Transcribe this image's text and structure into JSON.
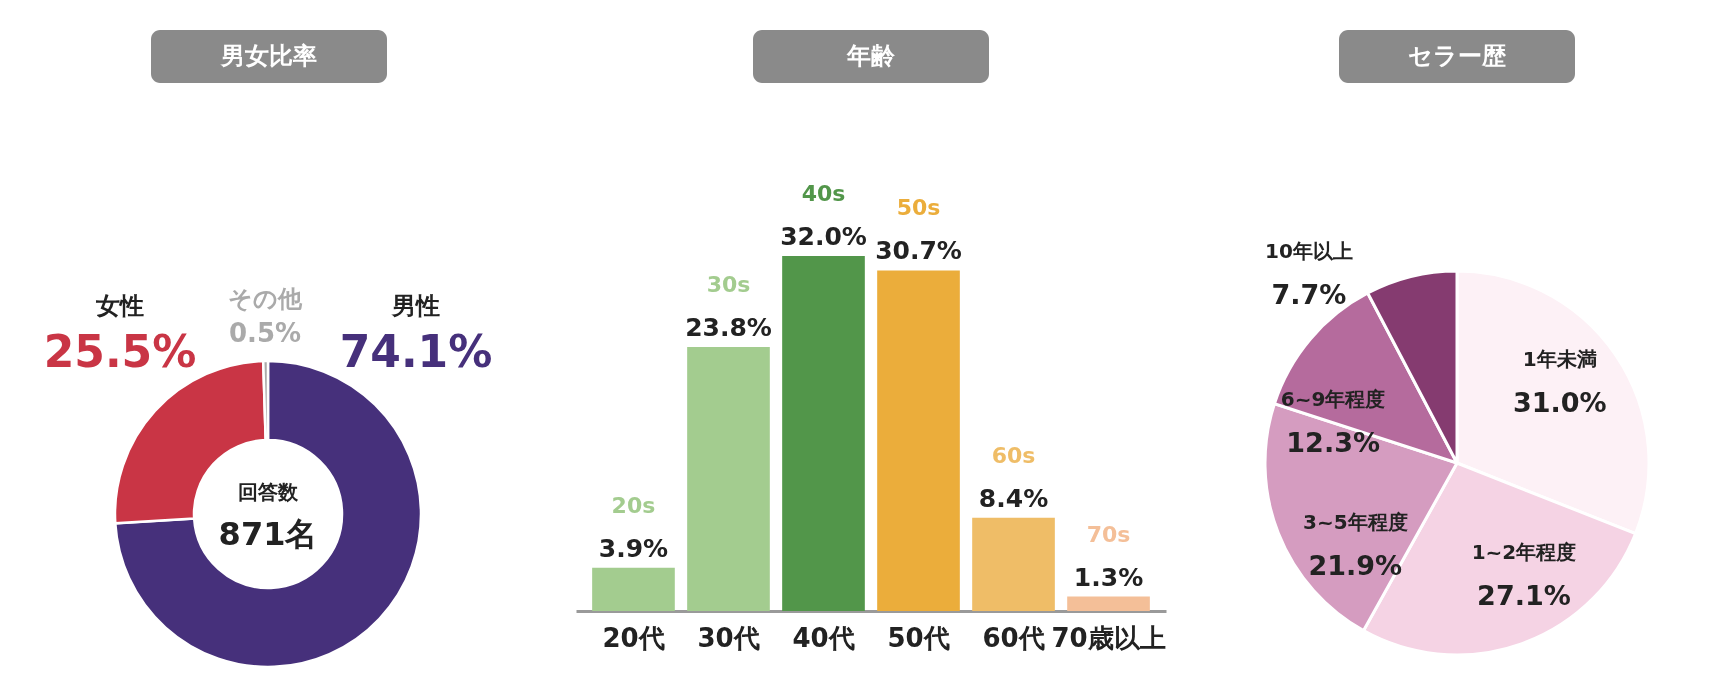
{
  "chart_data": [
    {
      "type": "donut",
      "title": "男女比率",
      "categories": [
        "男性",
        "女性",
        "その他"
      ],
      "values": [
        74.1,
        25.5,
        0.5
      ],
      "colors": [
        "#46307b",
        "#c93545",
        "#aaaaaa"
      ],
      "value_labels": [
        "74.1%",
        "25.5%",
        "0.5%"
      ],
      "annotations": [
        "回答数",
        "871名"
      ]
    },
    {
      "type": "bar",
      "title": "年齢",
      "categories": [
        "20代",
        "30代",
        "40代",
        "50代",
        "60代",
        "70歳以上"
      ],
      "values": [
        3.9,
        23.8,
        32.0,
        30.7,
        8.4,
        1.3
      ],
      "colors": [
        "#a3cc8f",
        "#a3cc8f",
        "#52964a",
        "#ebad3b",
        "#efbd67",
        "#f4bf98"
      ],
      "value_labels": [
        "3.9%",
        "23.8%",
        "32.0%",
        "30.7%",
        "8.4%",
        "1.3%"
      ],
      "annotations": [
        {
          "text": "20s",
          "x": "20代",
          "y": 3.9
        },
        {
          "text": "30s",
          "x": "30代",
          "y": 23.8
        },
        {
          "text": "40s",
          "x": "40代",
          "y": 32.0
        },
        {
          "text": "50s",
          "x": "50代",
          "y": 30.7
        },
        {
          "text": "60s",
          "x": "60代",
          "y": 8.4
        },
        {
          "text": "70s",
          "x": "70歳以上",
          "y": 1.3
        }
      ]
    },
    {
      "type": "pie",
      "title": "セラー歴",
      "categories": [
        "1年未満",
        "1~2年程度",
        "3~5年程度",
        "6~9年程度",
        "10年以上"
      ],
      "values": [
        31.0,
        27.1,
        21.9,
        12.3,
        7.7
      ],
      "colors": [
        "#fdf1f6",
        "#f5d3e4",
        "#d59cc0",
        "#b56b9d",
        "#853b70"
      ],
      "value_labels": [
        "31.0%",
        "27.1%",
        "21.9%",
        "12.3%",
        "7.7%"
      ]
    }
  ]
}
